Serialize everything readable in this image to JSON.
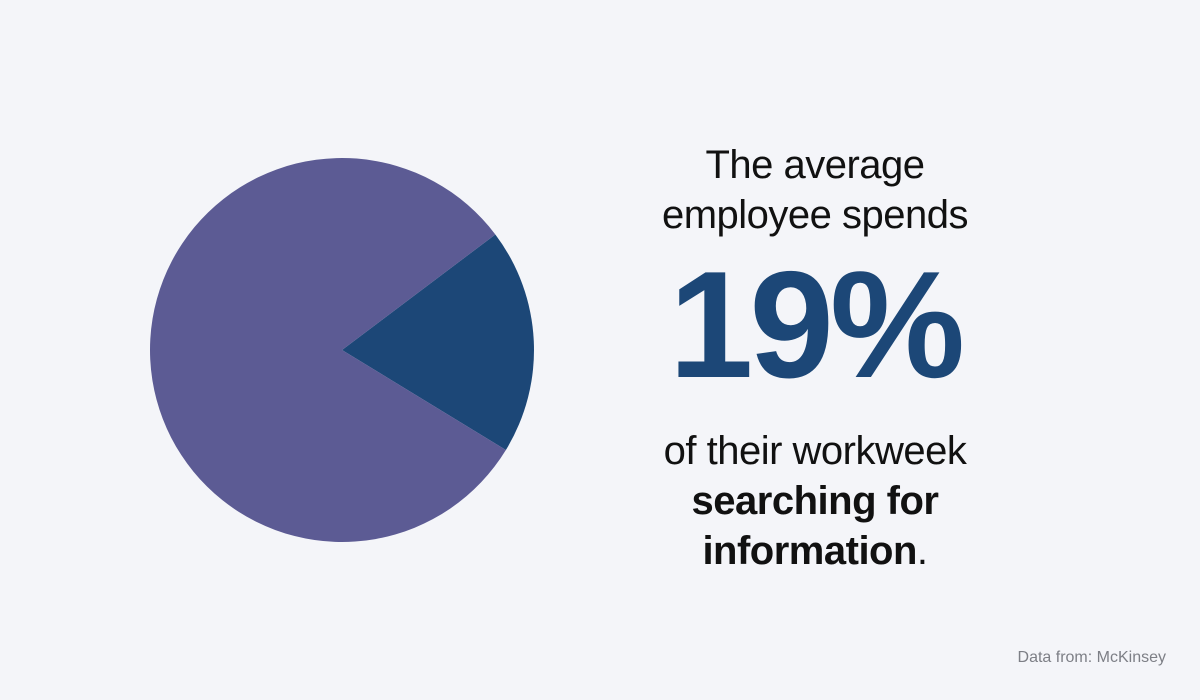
{
  "chart_data": {
    "type": "pie",
    "title": "",
    "slices": [
      {
        "label": "",
        "value": 19,
        "color": "#1c4777"
      },
      {
        "label": "",
        "value": 81,
        "color": "#5c5b94"
      }
    ]
  },
  "headline": {
    "intro_line1": "The average",
    "intro_line2": "employee spends",
    "stat": "19%",
    "outro_line1": "of their workweek",
    "outro_bold_line1": "searching for",
    "outro_bold_line2": "information",
    "outro_end": "."
  },
  "source": "Data from: McKinsey"
}
